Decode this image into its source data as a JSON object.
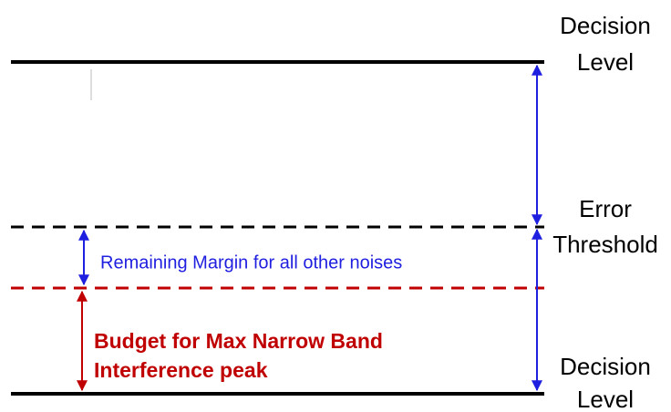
{
  "labels": {
    "top_level": [
      "Decision",
      "Level"
    ],
    "threshold": [
      "Error",
      "Threshold"
    ],
    "bottom_level": [
      "Decision",
      "Level"
    ],
    "margin": "Remaining Margin for all other noises",
    "budget": [
      "Budget for Max Narrow Band",
      "Interference peak"
    ]
  }
}
